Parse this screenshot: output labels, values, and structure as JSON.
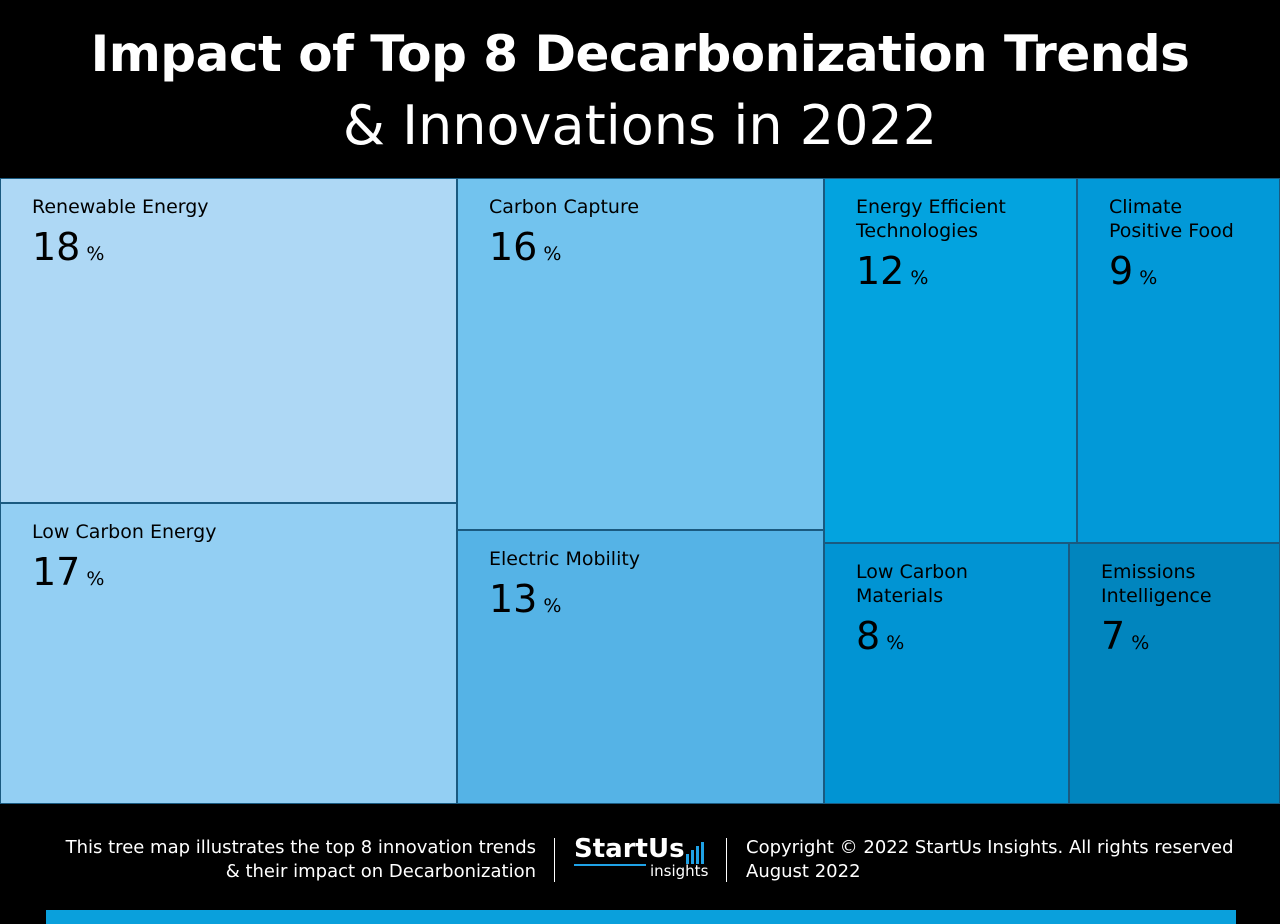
{
  "header": {
    "title": "Impact of Top 8 Decarbonization Trends",
    "subtitle": "& Innovations in 2022"
  },
  "chart_data": {
    "type": "treemap",
    "unit": "%",
    "items": [
      {
        "label": "Renewable Energy",
        "value": 18,
        "color": "#aed8f5"
      },
      {
        "label": "Low Carbon Energy",
        "value": 17,
        "color": "#93cff3"
      },
      {
        "label": "Carbon Capture",
        "value": 16,
        "color": "#72c3ee"
      },
      {
        "label": "Electric Mobility",
        "value": 13,
        "color": "#55b3e6"
      },
      {
        "label": "Energy Efficient Technologies",
        "value": 12,
        "color": "#03a3df"
      },
      {
        "label": "Climate Positive Food",
        "value": 9,
        "color": "#0299d8"
      },
      {
        "label": "Low Carbon Materials",
        "value": 8,
        "color": "#0194d3"
      },
      {
        "label": "Emissions Intelligence",
        "value": 7,
        "color": "#0185be"
      }
    ]
  },
  "footer": {
    "note_line1": "This tree map illustrates the top 8 innovation trends",
    "note_line2": "& their impact on Decarbonization",
    "logo_main": "StartUs",
    "logo_sub": "insights",
    "copyright_line1": "Copyright © 2022 StartUs Insights. All rights reserved",
    "copyright_line2": "August 2022"
  }
}
